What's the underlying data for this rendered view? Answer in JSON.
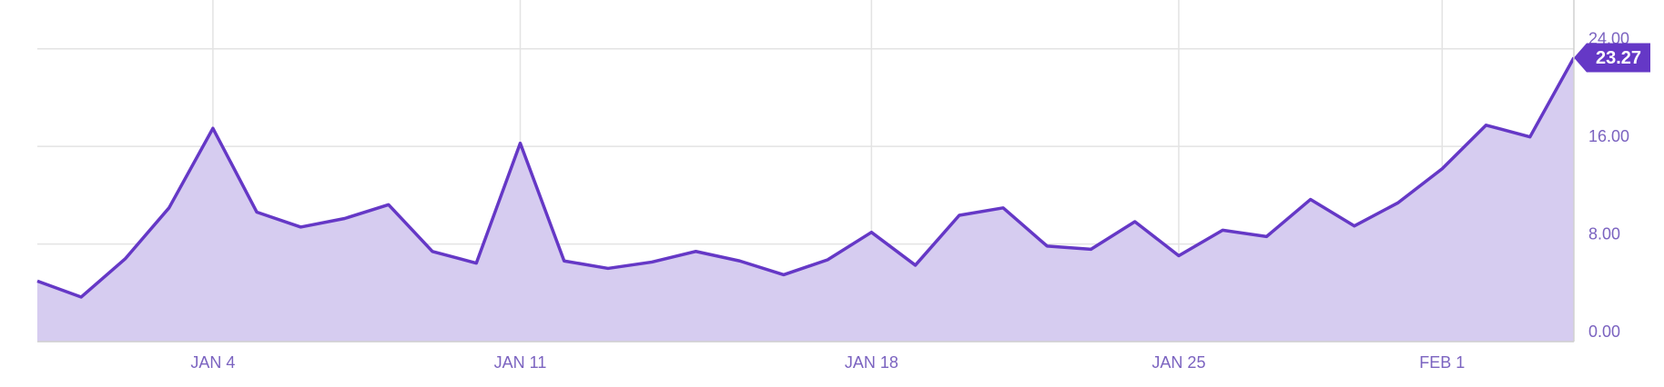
{
  "chart_data": {
    "type": "area",
    "categories": [
      null,
      null,
      null,
      null,
      "JAN 4",
      null,
      null,
      null,
      null,
      null,
      null,
      "JAN 11",
      null,
      null,
      null,
      null,
      null,
      null,
      null,
      "JAN 18",
      null,
      null,
      null,
      null,
      null,
      null,
      "JAN 25",
      null,
      null,
      null,
      null,
      null,
      "FEB 1",
      null,
      null,
      null
    ],
    "series": [
      {
        "color": "#6538c6",
        "values": [
          4.96,
          3.65,
          6.78,
          10.96,
          17.48,
          10.61,
          9.39,
          10.09,
          11.22,
          7.39,
          6.43,
          16.26,
          6.61,
          6.0,
          6.52,
          7.39,
          6.61,
          5.48,
          6.7,
          8.96,
          6.26,
          10.35,
          10.96,
          7.83,
          7.57,
          9.83,
          7.04,
          9.13,
          8.61,
          11.65,
          9.48,
          11.39,
          14.17,
          17.74,
          16.78,
          23.27
        ]
      }
    ],
    "ylim": [
      0,
      28
    ],
    "yticks": [
      {
        "value": 0,
        "label": "0.00"
      },
      {
        "value": 8,
        "label": "8.00"
      },
      {
        "value": 16,
        "label": "16.00"
      },
      {
        "value": 24,
        "label": "24.00"
      }
    ],
    "grid": true
  }
}
